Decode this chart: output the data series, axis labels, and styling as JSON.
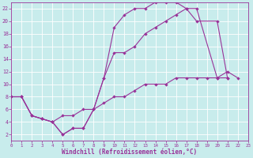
{
  "background_color": "#c8ecec",
  "grid_color": "#ffffff",
  "line_color": "#993399",
  "xlabel": "Windchill (Refroidissement éolien,°C)",
  "xlim": [
    0,
    23
  ],
  "ylim": [
    1,
    23
  ],
  "ytick_vals": [
    2,
    4,
    6,
    8,
    10,
    12,
    14,
    16,
    18,
    20,
    22
  ],
  "xtick_vals": [
    0,
    1,
    2,
    3,
    4,
    5,
    6,
    7,
    8,
    9,
    10,
    11,
    12,
    13,
    14,
    15,
    16,
    17,
    18,
    19,
    20,
    21,
    22,
    23
  ],
  "curve1_x": [
    0,
    1,
    2,
    3,
    4,
    5,
    6,
    7,
    8,
    9,
    10,
    11,
    12,
    13,
    14,
    15,
    16,
    17,
    18,
    20,
    21
  ],
  "curve1_y": [
    8,
    8,
    5,
    4.5,
    4,
    2,
    3,
    3,
    6,
    11,
    19,
    21,
    22,
    22,
    23,
    23,
    23,
    22,
    22,
    11,
    11
  ],
  "curve2_x": [
    0,
    1,
    2,
    3,
    4,
    5,
    6,
    7,
    8,
    9,
    10,
    11,
    12,
    13,
    14,
    15,
    16,
    17,
    18,
    20,
    21
  ],
  "curve2_y": [
    8,
    8,
    5,
    4.5,
    4,
    2,
    3,
    3,
    6,
    11,
    15,
    15,
    16,
    18,
    19,
    20,
    21,
    22,
    20,
    20,
    11
  ],
  "curve3_x": [
    0,
    1,
    2,
    3,
    4,
    5,
    6,
    7,
    8,
    9,
    10,
    11,
    12,
    13,
    14,
    15,
    16,
    17,
    18,
    19,
    20,
    21,
    22
  ],
  "curve3_y": [
    8,
    8,
    5,
    4.5,
    4,
    5,
    5,
    6,
    6,
    7,
    8,
    8,
    9,
    10,
    10,
    10,
    11,
    11,
    11,
    11,
    11,
    12,
    11
  ]
}
